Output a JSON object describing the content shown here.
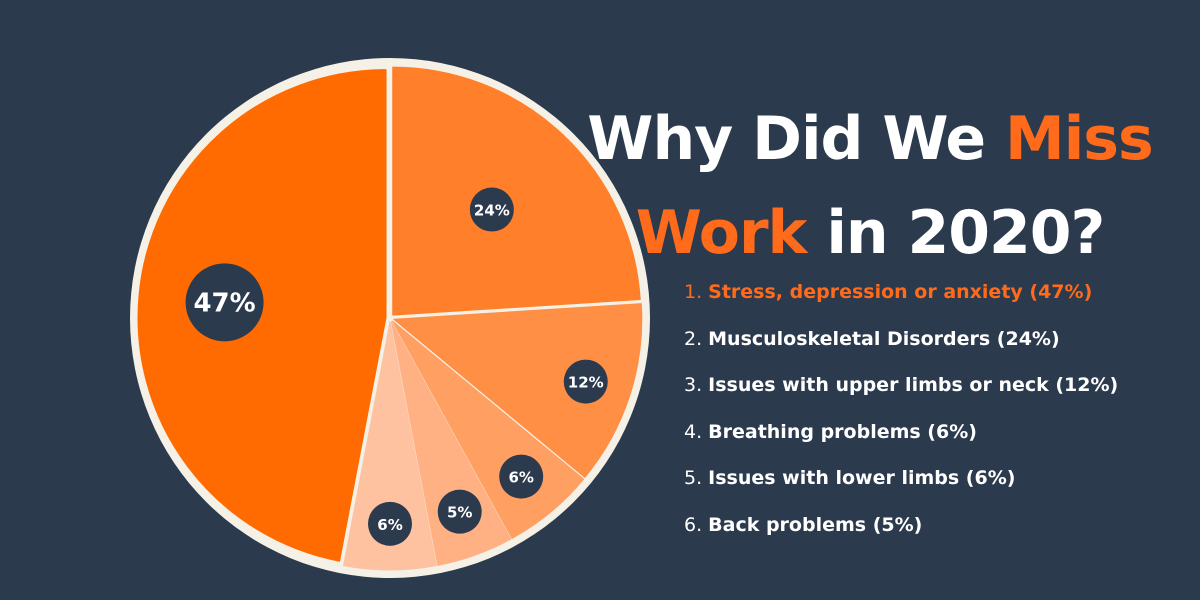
{
  "title": {
    "part1": "Why Did We ",
    "part2": "Miss",
    "part3": "Work",
    "part4": " in 2020?"
  },
  "colors": {
    "background": "#2c3a4e",
    "accent": "#ff6b1a",
    "badge": "#2c3a4e",
    "pie_border": "#f6f1e6"
  },
  "legend": [
    {
      "number": "1.",
      "text": "Stress, depression or anxiety (47%)"
    },
    {
      "number": "2.",
      "text": "Musculoskeletal Disorders (24%)"
    },
    {
      "number": "3.",
      "text": "Issues with upper limbs or neck (12%)"
    },
    {
      "number": "4.",
      "text": "Breathing problems (6%)"
    },
    {
      "number": "5.",
      "text": "Issues with lower limbs (6%)"
    },
    {
      "number": "6.",
      "text": "Back problems (5%)"
    }
  ],
  "chart_data": {
    "type": "pie",
    "title": "Why Did We Miss Work in 2020?",
    "legend_position": "right",
    "slices": [
      {
        "label": "Musculoskeletal Disorders",
        "value": 24,
        "display": "24%",
        "color": "#ff7f2a"
      },
      {
        "label": "Issues with upper limbs or neck",
        "value": 12,
        "display": "12%",
        "color": "#ff8f45"
      },
      {
        "label": "Breathing problems",
        "value": 6,
        "display": "6%",
        "color": "#ffa062"
      },
      {
        "label": "Back problems",
        "value": 5,
        "display": "5%",
        "color": "#ffb184"
      },
      {
        "label": "Issues with lower limbs",
        "value": 6,
        "display": "6%",
        "color": "#fec2a0"
      },
      {
        "label": "Stress, depression or anxiety",
        "value": 47,
        "display": "47%",
        "color": "#ff6b00"
      }
    ]
  }
}
